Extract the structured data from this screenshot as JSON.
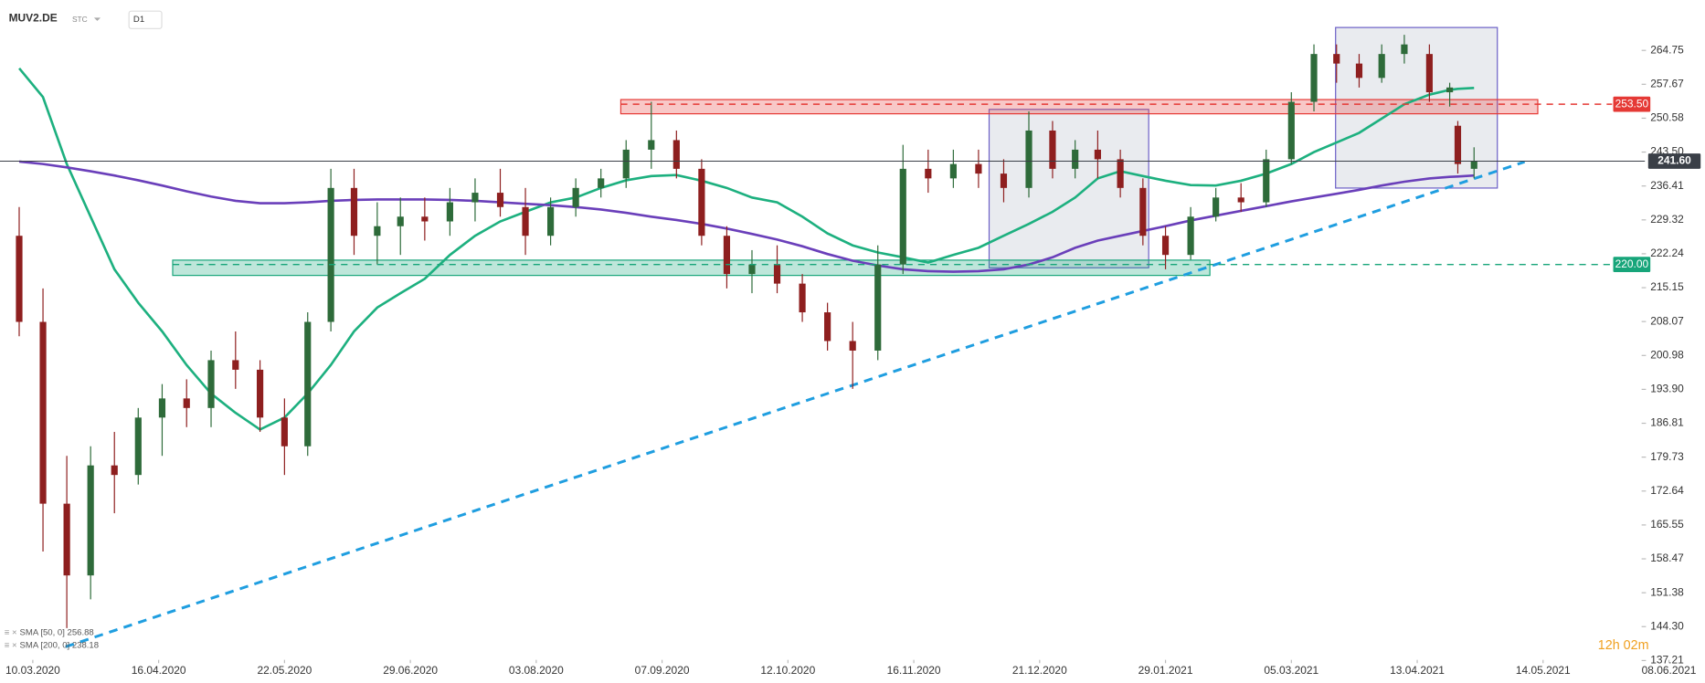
{
  "chart_data": {
    "type": "candlestick",
    "title": "MUV2.DE",
    "subtitle": "STC",
    "timeframe": "D1",
    "timer": "12h 02m",
    "up_color": "#2e6b3a",
    "down_color": "#8e1f1f",
    "x": [
      "2020-03-06",
      "2020-03-13",
      "2020-03-20",
      "2020-03-27",
      "2020-04-03",
      "2020-04-10",
      "2020-04-17",
      "2020-04-24",
      "2020-05-01",
      "2020-05-08",
      "2020-05-15",
      "2020-05-22",
      "2020-05-29",
      "2020-06-05",
      "2020-06-12",
      "2020-06-19",
      "2020-06-26",
      "2020-07-03",
      "2020-07-10",
      "2020-07-17",
      "2020-07-24",
      "2020-07-31",
      "2020-08-07",
      "2020-08-14",
      "2020-08-21",
      "2020-08-28",
      "2020-09-04",
      "2020-09-11",
      "2020-09-18",
      "2020-09-25",
      "2020-10-02",
      "2020-10-09",
      "2020-10-16",
      "2020-10-23",
      "2020-10-30",
      "2020-11-06",
      "2020-11-13",
      "2020-11-20",
      "2020-11-27",
      "2020-12-04",
      "2020-12-11",
      "2020-12-18",
      "2020-12-25",
      "2021-01-01",
      "2021-01-08",
      "2021-01-15",
      "2021-01-22",
      "2021-01-29",
      "2021-02-05",
      "2021-02-12",
      "2021-02-19",
      "2021-02-26",
      "2021-03-05",
      "2021-03-12",
      "2021-03-19",
      "2021-03-26",
      "2021-04-02",
      "2021-04-09",
      "2021-04-16",
      "2021-04-21",
      "2021-04-23",
      "2021-04-27"
    ],
    "open": [
      226,
      208,
      170,
      155,
      178,
      176,
      188,
      192,
      190,
      200,
      198,
      188,
      182,
      208,
      236,
      226,
      228,
      230,
      229,
      233,
      235,
      232,
      226,
      232,
      236,
      238,
      244,
      246,
      240,
      226,
      218,
      220,
      216,
      210,
      204,
      202,
      220,
      240,
      238,
      241,
      239,
      236,
      248,
      240,
      244,
      242,
      236,
      226,
      222,
      230,
      234,
      233,
      242,
      254,
      264,
      262,
      259,
      264,
      264,
      256,
      249,
      240
    ],
    "high": [
      232,
      215,
      180,
      182,
      185,
      190,
      195,
      196,
      202,
      206,
      200,
      192,
      210,
      240,
      240,
      233,
      234,
      234,
      236,
      238,
      240,
      236,
      234,
      238,
      240,
      246,
      254,
      248,
      242,
      228,
      223,
      224,
      218,
      212,
      208,
      224,
      245,
      244,
      244,
      244,
      242,
      252,
      250,
      246,
      248,
      244,
      238,
      228,
      232,
      236,
      237,
      244,
      256,
      266,
      266,
      264,
      266,
      268,
      266,
      258,
      250,
      244.5
    ],
    "low": [
      205,
      160,
      144,
      150,
      168,
      174,
      180,
      186,
      186,
      194,
      185,
      176,
      180,
      206,
      222,
      220,
      222,
      225,
      226,
      229,
      230,
      222,
      224,
      230,
      234,
      236,
      240,
      238,
      224,
      215,
      214,
      214,
      208,
      202,
      194,
      200,
      218,
      235,
      236,
      236,
      233,
      234,
      238,
      238,
      238,
      234,
      224,
      219,
      221,
      229,
      231,
      232,
      241,
      252,
      258,
      257,
      258,
      262,
      254,
      253,
      239,
      238
    ],
    "close": [
      208,
      170,
      155,
      178,
      176,
      188,
      192,
      190,
      200,
      198,
      188,
      182,
      208,
      236,
      226,
      228,
      230,
      229,
      233,
      235,
      232,
      226,
      232,
      236,
      238,
      244,
      246,
      240,
      226,
      218,
      220,
      216,
      210,
      204,
      202,
      220,
      240,
      238,
      241,
      239,
      236,
      248,
      240,
      244,
      242,
      236,
      226,
      222,
      230,
      234,
      233,
      242,
      254,
      264,
      262,
      259,
      264,
      266,
      256,
      257,
      241,
      241.6
    ],
    "series": [
      {
        "name": "SMA [50, 0] 256.88",
        "color": "#1db07f",
        "values": [
          261,
          255,
          241,
          230,
          219,
          212,
          206,
          199,
          193,
          189,
          185.5,
          188,
          193,
          199,
          206,
          211,
          214,
          217,
          222,
          226,
          229,
          231,
          233,
          234,
          236,
          237.6,
          238.5,
          238.7,
          237.5,
          236,
          234,
          233,
          230,
          226.5,
          224,
          222.5,
          221.5,
          220.4,
          222,
          223.5,
          226,
          228.5,
          231,
          234,
          238,
          239.5,
          238.5,
          237.5,
          236.6,
          236.5,
          237.5,
          239,
          241,
          243.5,
          245.5,
          247.5,
          250.5,
          253.5,
          255.5,
          256.5,
          256.7,
          256.9
        ]
      },
      {
        "name": "SMA [200, 0] 238.18",
        "color": "#6a3fba",
        "values": [
          241.5,
          241,
          240.3,
          239.5,
          238.6,
          237.6,
          236.5,
          235.3,
          234.2,
          233.3,
          232.8,
          232.8,
          233,
          233.3,
          233.5,
          233.6,
          233.6,
          233.6,
          233.5,
          233.3,
          233,
          232.7,
          232.4,
          232,
          231.5,
          230.8,
          230,
          229.3,
          228.5,
          227.5,
          226.4,
          225.2,
          223.8,
          222.2,
          220.8,
          219.8,
          219,
          218.6,
          218.5,
          218.6,
          219,
          220,
          221.5,
          223.5,
          225,
          226,
          227,
          228,
          229.2,
          230.2,
          231.2,
          232.2,
          233.2,
          234,
          234.8,
          235.6,
          236.5,
          237.3,
          238,
          238.3,
          238.4,
          238.6
        ]
      }
    ],
    "levels": [
      {
        "value": 253.5,
        "label": "253.50",
        "color": "#e53935"
      },
      {
        "value": 220,
        "label": "220.00",
        "color": "#17a57a"
      },
      {
        "value": 241.6,
        "label": "241.60",
        "color": "#3a3f47"
      }
    ],
    "ylim": [
      137.21,
      275.25
    ],
    "yticks": [
      264.75,
      257.67,
      250.58,
      {
        "value": 243.5,
        "label": "243.50"
      },
      236.41,
      229.32,
      222.24,
      215.15,
      208.07,
      200.98,
      {
        "value": 193.9,
        "label": "193.90"
      },
      186.81,
      179.73,
      172.64,
      165.55,
      158.47,
      151.38,
      {
        "value": 144.3,
        "label": "144.30"
      },
      137.21
    ],
    "xticks": [
      {
        "value": "2020-03-10",
        "label": "10.03.2020"
      },
      {
        "value": "2020-04-16",
        "label": "16.04.2020"
      },
      {
        "value": "2020-05-22",
        "label": "22.05.2020"
      },
      {
        "value": "2020-06-29",
        "label": "29.06.2020"
      },
      {
        "value": "2020-08-03",
        "label": "03.08.2020"
      },
      {
        "value": "2020-09-07",
        "label": "07.09.2020"
      },
      {
        "value": "2020-10-12",
        "label": "12.10.2020"
      },
      {
        "value": "2020-11-16",
        "label": "16.11.2020"
      },
      {
        "value": "2020-12-21",
        "label": "21.12.2020"
      },
      {
        "value": "2021-01-29",
        "label": "29.01.2021"
      },
      {
        "value": "2021-03-05",
        "label": "05.03.2021"
      },
      {
        "value": "2021-04-13",
        "label": "13.04.2021"
      },
      {
        "value": "2021-05-14",
        "label": "14.05.2021"
      },
      {
        "value": "2021-06-08",
        "label": "08.06.2021"
      }
    ]
  }
}
